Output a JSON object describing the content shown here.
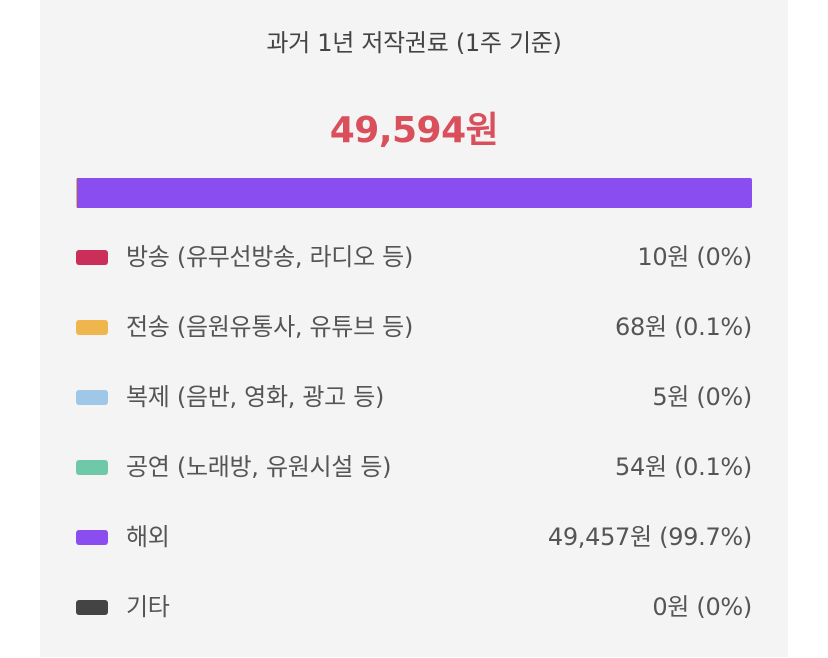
{
  "title": "과거 1년 저작권료 (1주 기준)",
  "total": "49,594원",
  "colors": {
    "total": "#d94f5c",
    "background": "#f4f4f4"
  },
  "categories": [
    {
      "label": "방송 (유무선방송, 라디오 등)",
      "value": "10원 (0%)",
      "share": 0.0,
      "color": "#cc2e5a"
    },
    {
      "label": "전송 (음원유통사, 유튜브 등)",
      "value": "68원 (0.1%)",
      "share": 0.1,
      "color": "#f0b64e"
    },
    {
      "label": "복제 (음반, 영화, 광고 등)",
      "value": "5원 (0%)",
      "share": 0.0,
      "color": "#9fc8e8"
    },
    {
      "label": "공연 (노래방, 유원시설 등)",
      "value": "54원 (0.1%)",
      "share": 0.1,
      "color": "#6fc8a8"
    },
    {
      "label": "해외",
      "value": "49,457원 (99.7%)",
      "share": 99.7,
      "color": "#8a4ef0"
    },
    {
      "label": "기타",
      "value": "0원 (0%)",
      "share": 0.0,
      "color": "#444444"
    }
  ]
}
